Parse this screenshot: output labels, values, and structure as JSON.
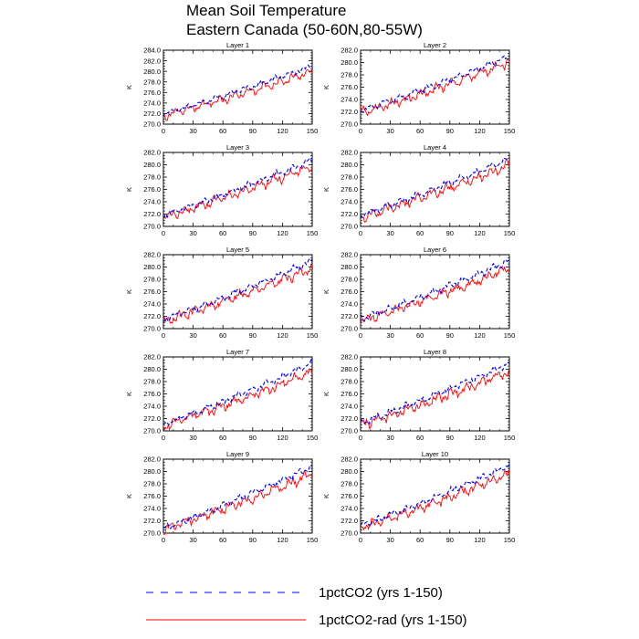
{
  "title": {
    "line1": "Mean Soil Temperature",
    "line2": "Eastern Canada (50-60N,80-55W)"
  },
  "legend": {
    "placement": "bottom",
    "items": [
      {
        "label": "1pctCO2 (yrs 1-150)",
        "color": "#0000ff",
        "style": "dashed"
      },
      {
        "label": "1pctCO2-rad (yrs 1-150)",
        "color": "#ff0000",
        "style": "solid"
      }
    ]
  },
  "chart_data": {
    "type": "line",
    "xlim": [
      0,
      150
    ],
    "ylim": [
      270,
      284
    ],
    "xticks": [
      0,
      30,
      60,
      90,
      120,
      150
    ],
    "ylabel": "K",
    "panels": [
      {
        "title": "Layer 1",
        "yticks": [
          "270.0",
          "272.0",
          "274.0",
          "276.0",
          "278.0",
          "280.0",
          "282.0",
          "284.0"
        ],
        "ylim": [
          270,
          284
        ],
        "trend_start": [
          272.0,
          271.6
        ],
        "trend_end": [
          281.0,
          280.0
        ]
      },
      {
        "title": "Layer 2",
        "yticks": [
          "270.0",
          "272.0",
          "274.0",
          "276.0",
          "278.0",
          "280.0",
          "282.0"
        ],
        "ylim": [
          270,
          282
        ],
        "trend_start": [
          272.2,
          271.8
        ],
        "trend_end": [
          281.0,
          280.0
        ]
      },
      {
        "title": "Layer 3",
        "yticks": [
          "270.0",
          "272.0",
          "274.0",
          "276.0",
          "278.0",
          "280.0",
          "282.0"
        ],
        "ylim": [
          270,
          282
        ],
        "trend_start": [
          271.8,
          271.5
        ],
        "trend_end": [
          280.8,
          279.8
        ]
      },
      {
        "title": "Layer 4",
        "yticks": [
          "270.0",
          "272.0",
          "274.0",
          "276.0",
          "278.0",
          "280.0",
          "282.0"
        ],
        "ylim": [
          270,
          282
        ],
        "trend_start": [
          271.8,
          271.4
        ],
        "trend_end": [
          281.0,
          280.0
        ]
      },
      {
        "title": "Layer 5",
        "yticks": [
          "270.0",
          "272.0",
          "274.0",
          "276.0",
          "278.0",
          "280.0",
          "282.0"
        ],
        "ylim": [
          270,
          282
        ],
        "trend_start": [
          271.5,
          271.2
        ],
        "trend_end": [
          281.0,
          279.8
        ]
      },
      {
        "title": "Layer 6",
        "yticks": [
          "270.0",
          "272.0",
          "274.0",
          "276.0",
          "278.0",
          "280.0",
          "282.0"
        ],
        "ylim": [
          270,
          282
        ],
        "trend_start": [
          271.6,
          271.2
        ],
        "trend_end": [
          281.0,
          279.8
        ]
      },
      {
        "title": "Layer 7",
        "yticks": [
          "270.0",
          "272.0",
          "274.0",
          "276.0",
          "278.0",
          "280.0",
          "282.0"
        ],
        "ylim": [
          270,
          282
        ],
        "trend_start": [
          271.0,
          270.8
        ],
        "trend_end": [
          281.0,
          279.6
        ]
      },
      {
        "title": "Layer 8",
        "yticks": [
          "270.0",
          "272.0",
          "274.0",
          "276.0",
          "278.0",
          "280.0",
          "282.0"
        ],
        "ylim": [
          270,
          282
        ],
        "trend_start": [
          271.3,
          271.0
        ],
        "trend_end": [
          281.0,
          279.6
        ]
      },
      {
        "title": "Layer 9",
        "yticks": [
          "270.0",
          "272.0",
          "274.0",
          "276.0",
          "278.0",
          "280.0",
          "282.0"
        ],
        "ylim": [
          270,
          282
        ],
        "trend_start": [
          270.8,
          270.6
        ],
        "trend_end": [
          280.8,
          279.6
        ]
      },
      {
        "title": "Layer 10",
        "yticks": [
          "270.0",
          "272.0",
          "274.0",
          "276.0",
          "278.0",
          "280.0",
          "282.0"
        ],
        "ylim": [
          270,
          282
        ],
        "trend_start": [
          271.2,
          270.9
        ],
        "trend_end": [
          281.0,
          279.6
        ]
      }
    ]
  }
}
